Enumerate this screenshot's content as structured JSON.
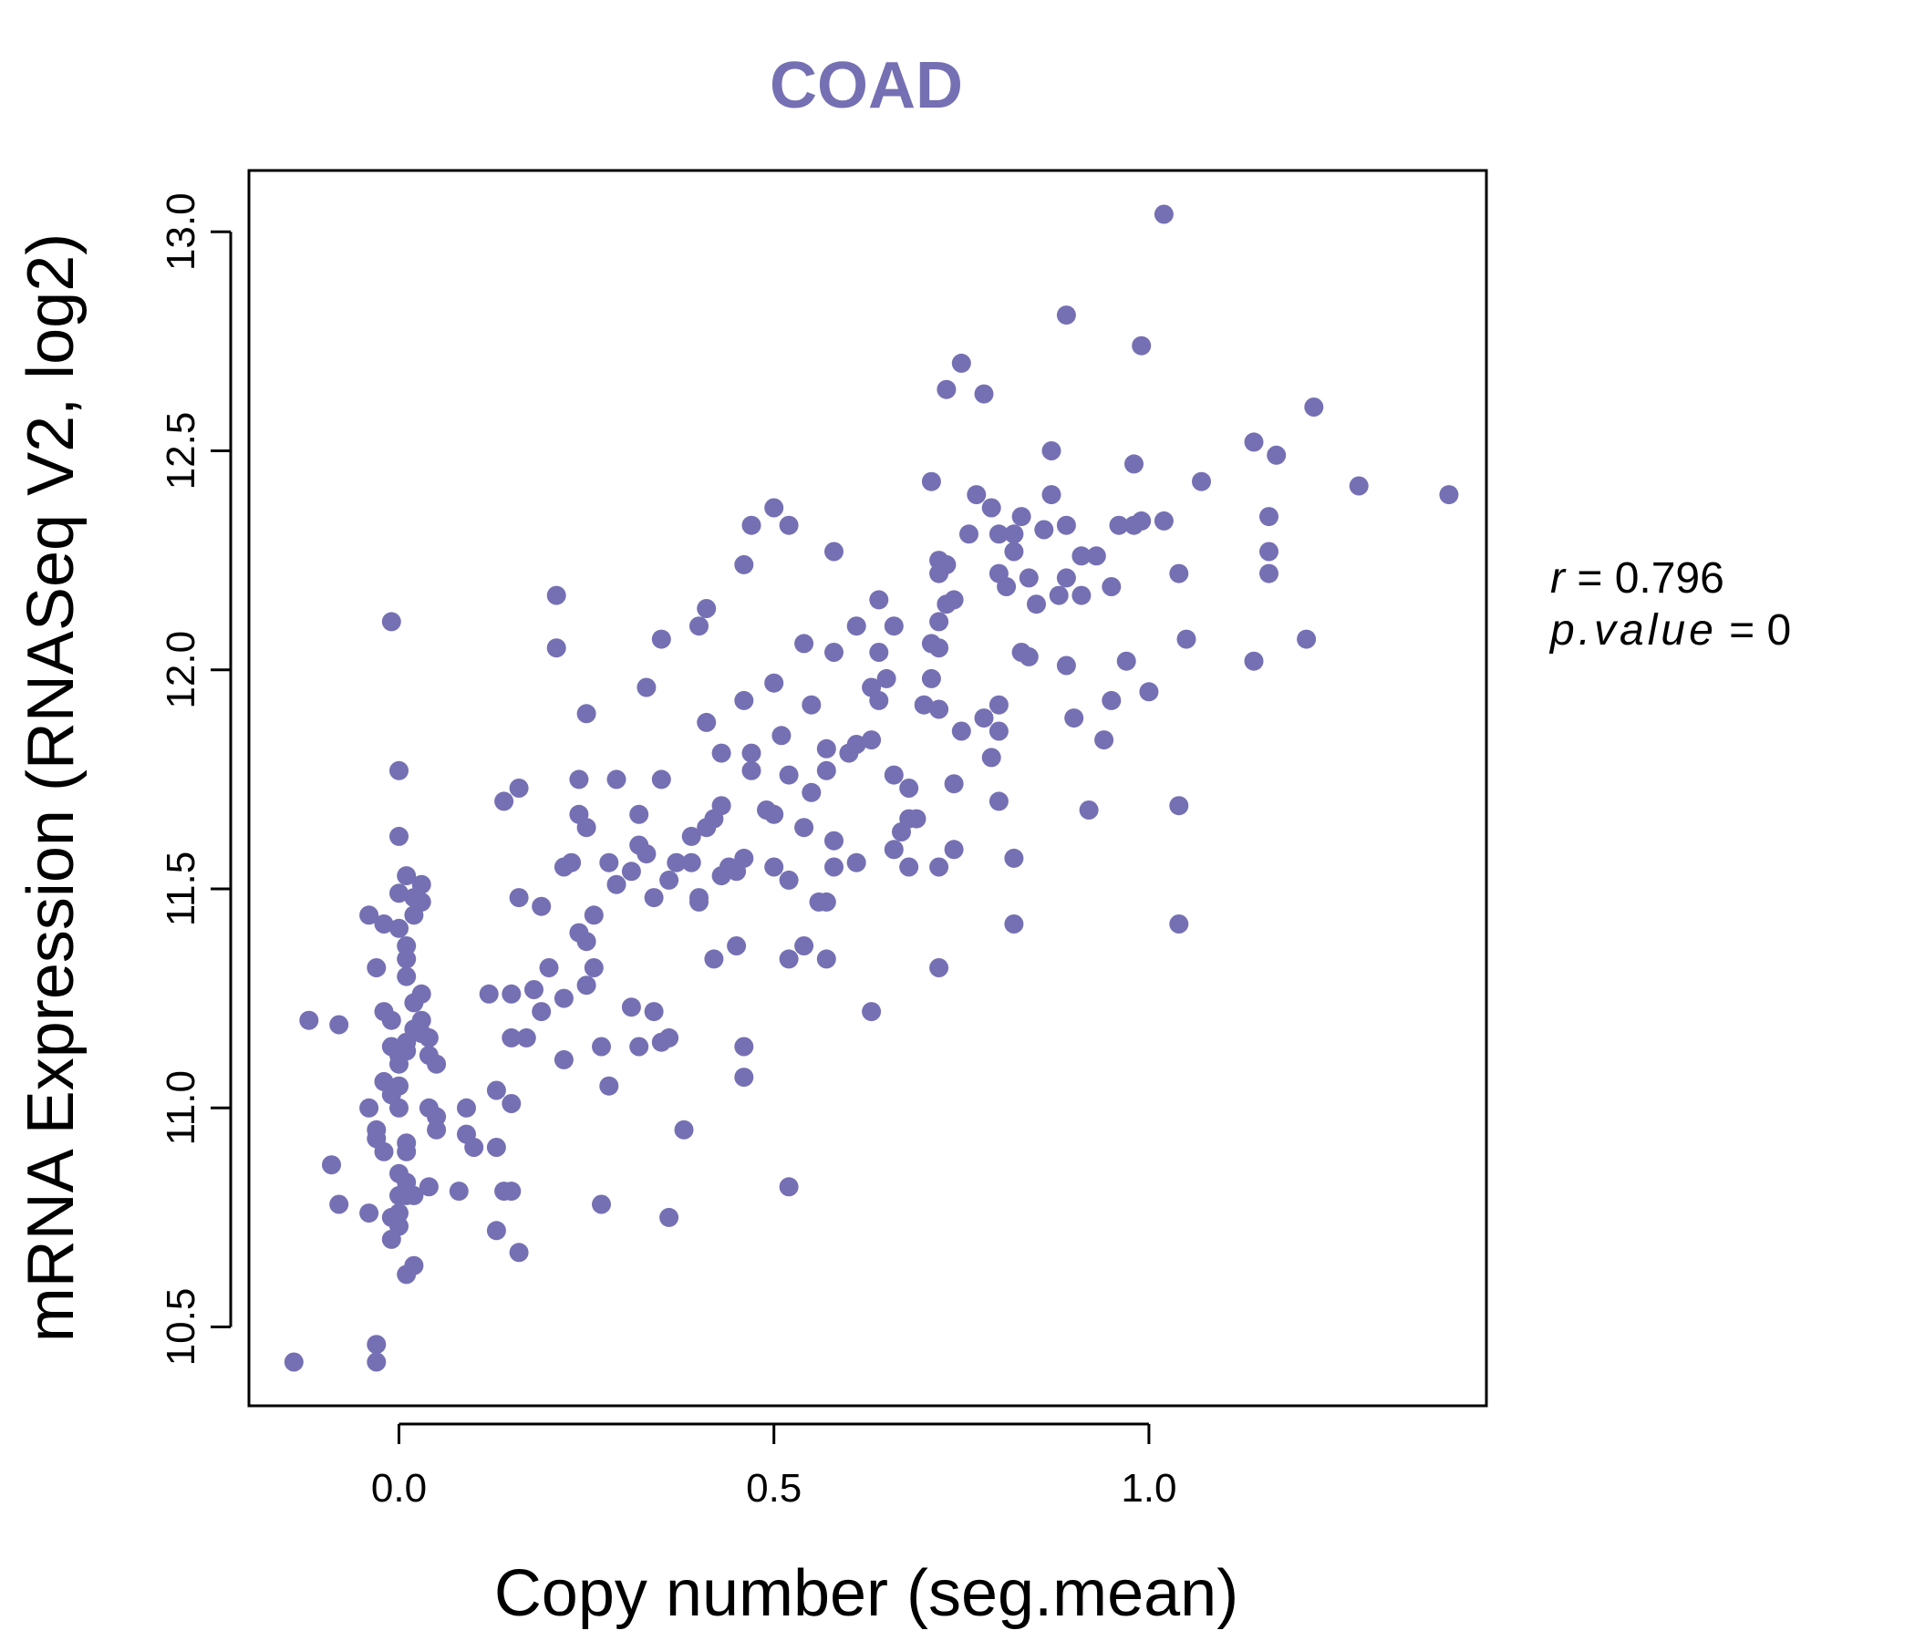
{
  "colors": {
    "accent": "#7570b3",
    "axis": "#000000",
    "background": "#ffffff"
  },
  "chart_data": {
    "type": "scatter",
    "title": "COAD",
    "xlabel": "Copy number (seg.mean)",
    "ylabel": "mRNA Expression (RNASeq V2, log2)",
    "xlim": [
      -0.2,
      1.45
    ],
    "ylim": [
      10.32,
      13.14
    ],
    "x_ticks": [
      0.0,
      0.5,
      1.0
    ],
    "x_tick_labels": [
      "0.0",
      "0.5",
      "1.0"
    ],
    "y_ticks": [
      10.5,
      11.0,
      11.5,
      12.0,
      12.5,
      13.0
    ],
    "y_tick_labels": [
      "10.5",
      "11.0",
      "11.5",
      "12.0",
      "12.5",
      "13.0"
    ],
    "annotation": {
      "r_label": "r",
      "r_value": "0.796",
      "p_label": "p.value",
      "p_value": "0"
    },
    "points": [
      [
        -0.14,
        10.42
      ],
      [
        -0.03,
        10.46
      ],
      [
        -0.03,
        10.42
      ],
      [
        -0.12,
        11.2
      ],
      [
        -0.08,
        11.19
      ],
      [
        -0.09,
        10.87
      ],
      [
        -0.08,
        10.78
      ],
      [
        -0.04,
        10.76
      ],
      [
        -0.04,
        11.0
      ],
      [
        -0.03,
        10.93
      ],
      [
        -0.03,
        10.95
      ],
      [
        -0.02,
        10.9
      ],
      [
        -0.02,
        11.06
      ],
      [
        -0.02,
        11.22
      ],
      [
        -0.01,
        11.2
      ],
      [
        -0.01,
        11.14
      ],
      [
        -0.01,
        11.03
      ],
      [
        -0.01,
        10.75
      ],
      [
        -0.01,
        10.7
      ],
      [
        0.0,
        10.73
      ],
      [
        0.0,
        10.76
      ],
      [
        0.0,
        10.8
      ],
      [
        0.0,
        10.85
      ],
      [
        0.01,
        10.83
      ],
      [
        0.01,
        10.8
      ],
      [
        0.01,
        10.92
      ],
      [
        0.01,
        10.9
      ],
      [
        0.02,
        10.8
      ],
      [
        0.02,
        10.64
      ],
      [
        0.01,
        10.62
      ],
      [
        0.0,
        11.0
      ],
      [
        0.0,
        11.05
      ],
      [
        0.0,
        11.1
      ],
      [
        0.0,
        11.12
      ],
      [
        0.01,
        11.13
      ],
      [
        0.01,
        11.15
      ],
      [
        0.02,
        11.18
      ],
      [
        0.02,
        11.24
      ],
      [
        0.03,
        11.2
      ],
      [
        0.03,
        11.17
      ],
      [
        0.04,
        11.12
      ],
      [
        0.04,
        11.0
      ],
      [
        0.05,
        10.98
      ],
      [
        0.05,
        10.95
      ],
      [
        0.04,
        10.82
      ],
      [
        -0.03,
        11.32
      ],
      [
        -0.04,
        11.44
      ],
      [
        -0.02,
        11.42
      ],
      [
        0.0,
        11.41
      ],
      [
        0.01,
        11.37
      ],
      [
        0.01,
        11.34
      ],
      [
        0.01,
        11.3
      ],
      [
        0.02,
        11.44
      ],
      [
        0.02,
        11.48
      ],
      [
        0.03,
        11.51
      ],
      [
        0.03,
        11.47
      ],
      [
        0.0,
        11.49
      ],
      [
        0.01,
        11.53
      ],
      [
        0.0,
        11.62
      ],
      [
        0.0,
        11.77
      ],
      [
        -0.01,
        12.11
      ],
      [
        0.03,
        11.26
      ],
      [
        0.04,
        11.16
      ],
      [
        0.05,
        11.1
      ],
      [
        0.09,
        11.0
      ],
      [
        0.09,
        10.94
      ],
      [
        0.1,
        10.91
      ],
      [
        0.08,
        10.81
      ],
      [
        0.13,
        10.91
      ],
      [
        0.14,
        10.81
      ],
      [
        0.15,
        10.81
      ],
      [
        0.13,
        10.72
      ],
      [
        0.16,
        10.67
      ],
      [
        0.12,
        11.26
      ],
      [
        0.15,
        11.26
      ],
      [
        0.18,
        11.27
      ],
      [
        0.19,
        11.22
      ],
      [
        0.2,
        11.32
      ],
      [
        0.17,
        11.16
      ],
      [
        0.15,
        11.16
      ],
      [
        0.13,
        11.04
      ],
      [
        0.15,
        11.01
      ],
      [
        0.22,
        11.11
      ],
      [
        0.16,
        11.48
      ],
      [
        0.19,
        11.46
      ],
      [
        0.22,
        11.55
      ],
      [
        0.23,
        11.56
      ],
      [
        0.24,
        11.4
      ],
      [
        0.25,
        11.38
      ],
      [
        0.26,
        11.44
      ],
      [
        0.25,
        11.64
      ],
      [
        0.24,
        11.67
      ],
      [
        0.24,
        11.75
      ],
      [
        0.22,
        11.25
      ],
      [
        0.25,
        11.28
      ],
      [
        0.26,
        11.32
      ],
      [
        0.27,
        11.14
      ],
      [
        0.28,
        11.05
      ],
      [
        0.28,
        11.56
      ],
      [
        0.29,
        11.51
      ],
      [
        0.29,
        11.75
      ],
      [
        0.31,
        11.54
      ],
      [
        0.32,
        11.6
      ],
      [
        0.32,
        11.67
      ],
      [
        0.33,
        11.58
      ],
      [
        0.31,
        11.23
      ],
      [
        0.32,
        11.14
      ],
      [
        0.34,
        11.22
      ],
      [
        0.35,
        11.15
      ],
      [
        0.36,
        11.16
      ],
      [
        0.34,
        11.48
      ],
      [
        0.35,
        11.75
      ],
      [
        0.36,
        11.52
      ],
      [
        0.37,
        11.56
      ],
      [
        0.39,
        11.56
      ],
      [
        0.38,
        10.95
      ],
      [
        0.36,
        10.75
      ],
      [
        0.27,
        10.78
      ],
      [
        0.4,
        11.48
      ],
      [
        0.4,
        11.47
      ],
      [
        0.39,
        11.62
      ],
      [
        0.41,
        11.64
      ],
      [
        0.42,
        11.66
      ],
      [
        0.43,
        11.53
      ],
      [
        0.44,
        11.55
      ],
      [
        0.45,
        11.54
      ],
      [
        0.43,
        11.69
      ],
      [
        0.42,
        11.34
      ],
      [
        0.45,
        11.37
      ],
      [
        0.46,
        11.14
      ],
      [
        0.46,
        11.07
      ],
      [
        0.46,
        11.57
      ],
      [
        0.5,
        11.55
      ],
      [
        0.5,
        11.67
      ],
      [
        0.49,
        11.68
      ],
      [
        0.52,
        11.52
      ],
      [
        0.52,
        11.34
      ],
      [
        0.54,
        11.37
      ],
      [
        0.47,
        11.77
      ],
      [
        0.47,
        11.81
      ],
      [
        0.51,
        11.85
      ],
      [
        0.52,
        11.76
      ],
      [
        0.54,
        11.64
      ],
      [
        0.55,
        11.72
      ],
      [
        0.57,
        11.47
      ],
      [
        0.56,
        11.47
      ],
      [
        0.58,
        11.61
      ],
      [
        0.58,
        11.55
      ],
      [
        0.57,
        11.34
      ],
      [
        0.61,
        11.56
      ],
      [
        0.57,
        11.77
      ],
      [
        0.57,
        11.82
      ],
      [
        0.6,
        11.81
      ],
      [
        0.61,
        11.83
      ],
      [
        0.63,
        11.84
      ],
      [
        0.55,
        11.92
      ],
      [
        0.46,
        11.93
      ],
      [
        0.5,
        11.97
      ],
      [
        0.43,
        11.81
      ],
      [
        0.41,
        11.88
      ],
      [
        0.4,
        12.1
      ],
      [
        0.41,
        12.14
      ],
      [
        0.35,
        12.07
      ],
      [
        0.33,
        11.96
      ],
      [
        0.25,
        11.9
      ],
      [
        0.21,
        12.05
      ],
      [
        0.21,
        12.17
      ],
      [
        0.14,
        11.7
      ],
      [
        0.16,
        11.73
      ],
      [
        0.46,
        12.24
      ],
      [
        0.47,
        12.33
      ],
      [
        0.5,
        12.37
      ],
      [
        0.52,
        12.33
      ],
      [
        0.54,
        12.06
      ],
      [
        0.58,
        12.04
      ],
      [
        0.58,
        12.27
      ],
      [
        0.61,
        12.1
      ],
      [
        0.64,
        12.16
      ],
      [
        0.64,
        12.04
      ],
      [
        0.66,
        12.1
      ],
      [
        0.63,
        11.96
      ],
      [
        0.65,
        11.98
      ],
      [
        0.64,
        11.93
      ],
      [
        0.68,
        11.66
      ],
      [
        0.67,
        11.63
      ],
      [
        0.69,
        11.66
      ],
      [
        0.66,
        11.59
      ],
      [
        0.68,
        11.55
      ],
      [
        0.66,
        11.76
      ],
      [
        0.68,
        11.73
      ],
      [
        0.63,
        11.22
      ],
      [
        0.52,
        10.82
      ],
      [
        0.7,
        11.92
      ],
      [
        0.72,
        11.91
      ],
      [
        0.71,
        11.98
      ],
      [
        0.71,
        12.06
      ],
      [
        0.72,
        12.05
      ],
      [
        0.72,
        12.11
      ],
      [
        0.73,
        12.15
      ],
      [
        0.74,
        12.16
      ],
      [
        0.72,
        12.22
      ],
      [
        0.73,
        12.24
      ],
      [
        0.72,
        12.25
      ],
      [
        0.71,
        12.43
      ],
      [
        0.73,
        12.64
      ],
      [
        0.75,
        12.7
      ],
      [
        0.78,
        12.63
      ],
      [
        0.76,
        12.31
      ],
      [
        0.77,
        12.4
      ],
      [
        0.79,
        12.37
      ],
      [
        0.8,
        12.31
      ],
      [
        0.8,
        12.22
      ],
      [
        0.81,
        12.19
      ],
      [
        0.82,
        12.27
      ],
      [
        0.82,
        12.31
      ],
      [
        0.83,
        12.35
      ],
      [
        0.84,
        12.21
      ],
      [
        0.84,
        12.03
      ],
      [
        0.83,
        12.04
      ],
      [
        0.85,
        12.15
      ],
      [
        0.86,
        12.32
      ],
      [
        0.87,
        12.4
      ],
      [
        0.88,
        12.17
      ],
      [
        0.89,
        12.21
      ],
      [
        0.89,
        12.33
      ],
      [
        0.89,
        12.01
      ],
      [
        0.9,
        11.89
      ],
      [
        0.91,
        12.17
      ],
      [
        0.91,
        12.26
      ],
      [
        0.93,
        12.26
      ],
      [
        0.95,
        12.19
      ],
      [
        0.94,
        11.84
      ],
      [
        0.95,
        11.93
      ],
      [
        0.92,
        11.68
      ],
      [
        0.97,
        12.02
      ],
      [
        0.98,
        12.33
      ],
      [
        0.99,
        12.34
      ],
      [
        0.98,
        12.47
      ],
      [
        0.99,
        12.74
      ],
      [
        0.96,
        12.33
      ],
      [
        0.87,
        12.5
      ],
      [
        0.89,
        12.81
      ],
      [
        1.02,
        13.04
      ],
      [
        1.0,
        11.95
      ],
      [
        1.02,
        12.34
      ],
      [
        1.04,
        12.22
      ],
      [
        1.05,
        12.07
      ],
      [
        1.07,
        12.43
      ],
      [
        1.04,
        11.69
      ],
      [
        1.04,
        11.42
      ],
      [
        0.82,
        11.42
      ],
      [
        0.82,
        11.57
      ],
      [
        0.8,
        11.7
      ],
      [
        0.79,
        11.8
      ],
      [
        0.8,
        11.86
      ],
      [
        0.8,
        11.92
      ],
      [
        0.78,
        11.89
      ],
      [
        0.75,
        11.86
      ],
      [
        0.74,
        11.74
      ],
      [
        0.74,
        11.59
      ],
      [
        0.72,
        11.55
      ],
      [
        0.72,
        11.32
      ],
      [
        1.14,
        12.52
      ],
      [
        1.17,
        12.49
      ],
      [
        1.16,
        12.35
      ],
      [
        1.16,
        12.27
      ],
      [
        1.16,
        12.22
      ],
      [
        1.14,
        12.02
      ],
      [
        1.21,
        12.07
      ],
      [
        1.22,
        12.6
      ],
      [
        1.28,
        12.42
      ],
      [
        1.4,
        12.4
      ]
    ]
  }
}
